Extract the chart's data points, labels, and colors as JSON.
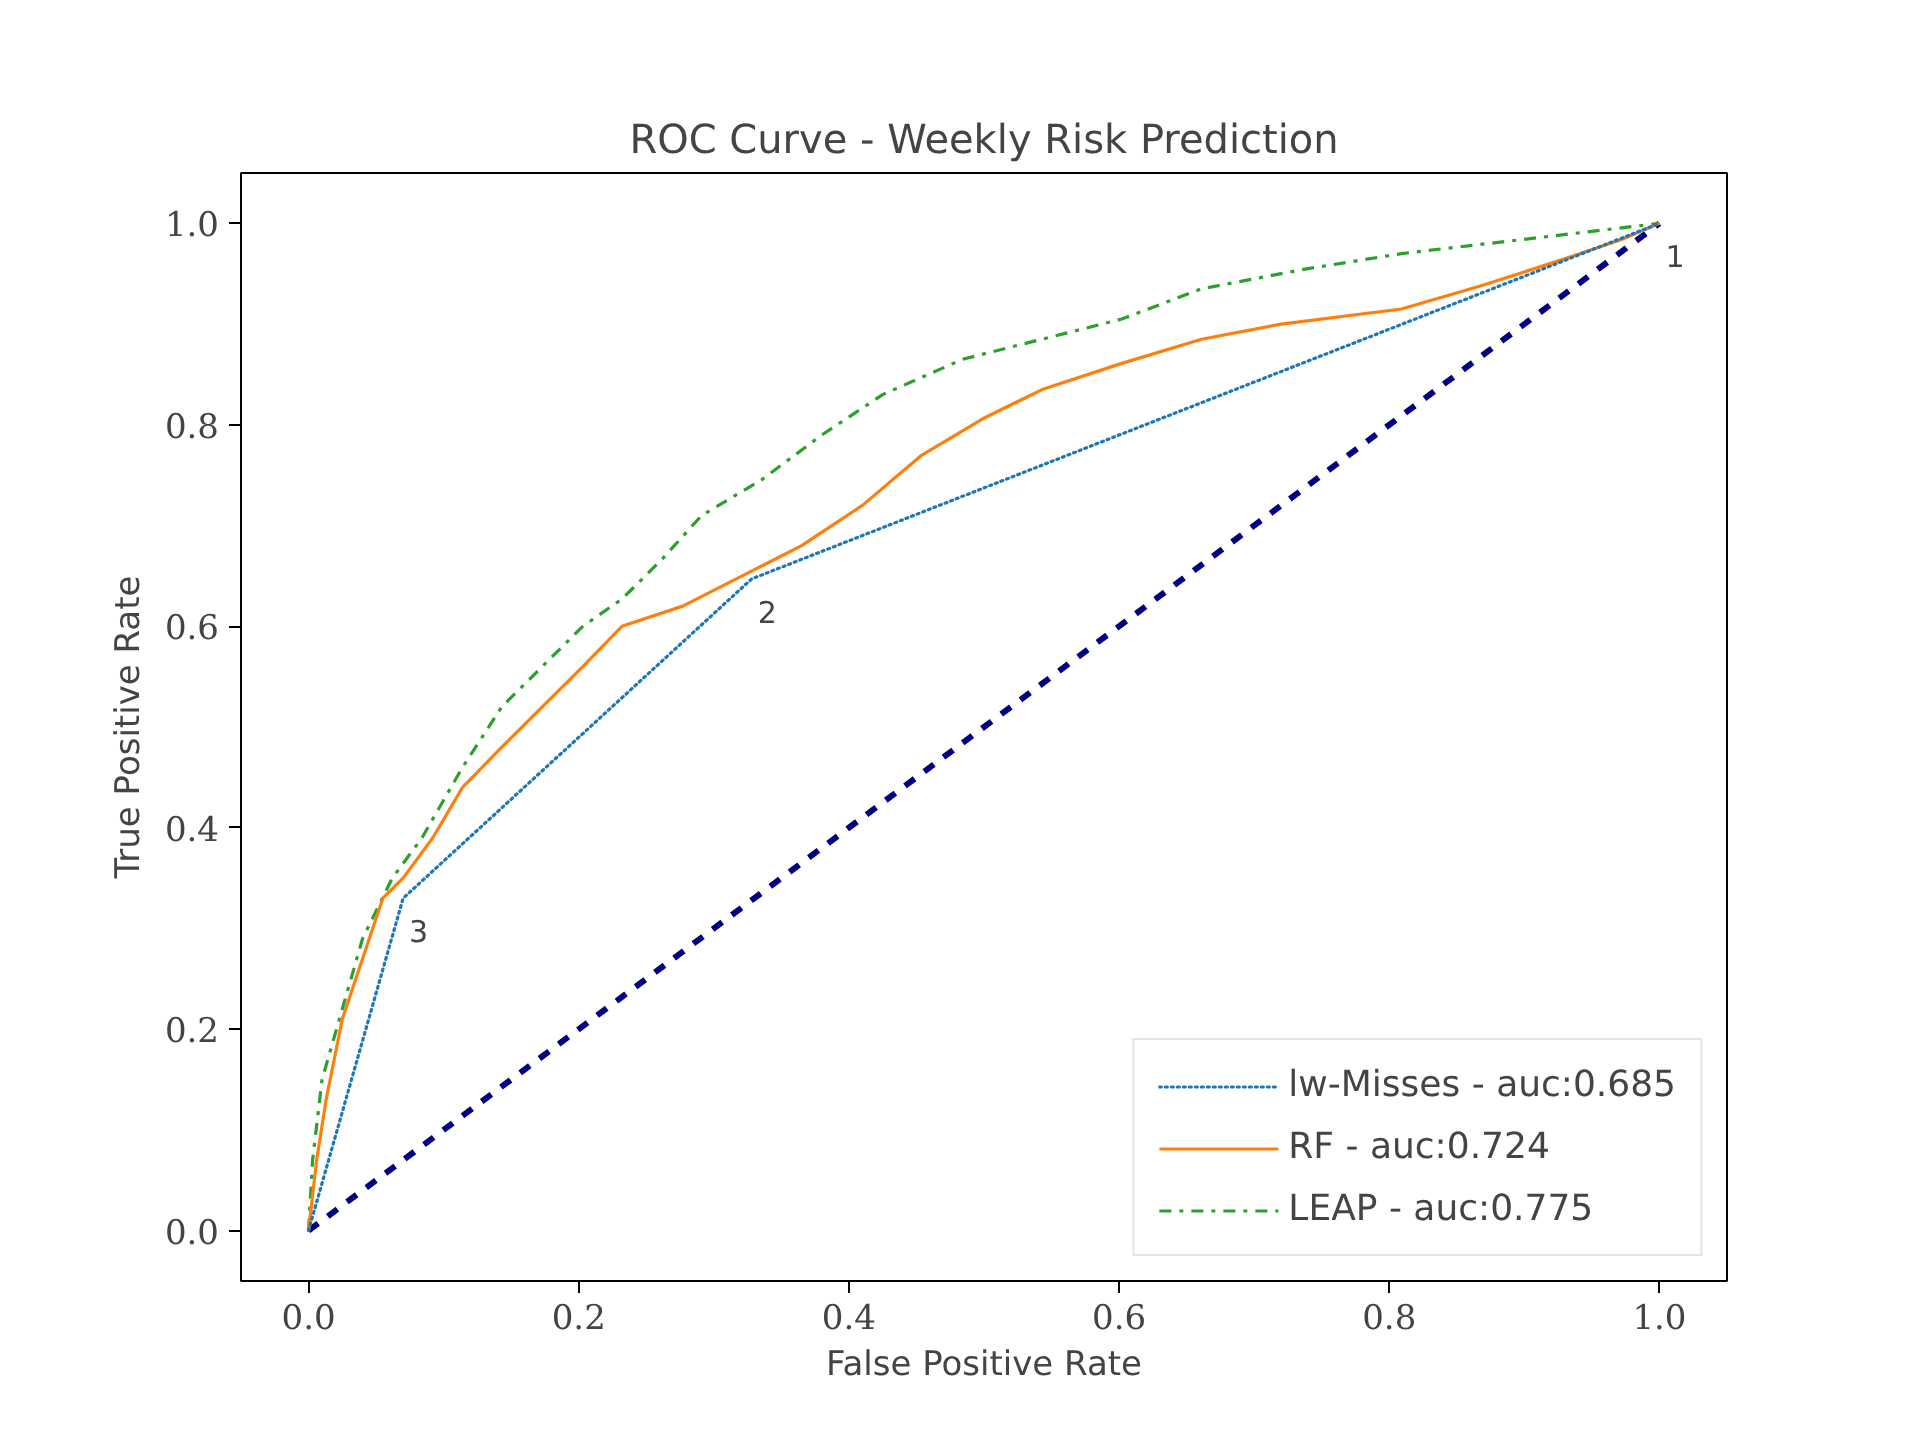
{
  "chart_data": {
    "type": "line",
    "title": "ROC Curve - Weekly Risk Prediction",
    "xlabel": "False Positive Rate",
    "ylabel": "True Positive Rate",
    "xlim": [
      -0.05,
      1.05
    ],
    "ylim": [
      -0.05,
      1.05
    ],
    "xticks": [
      {
        "value": 0,
        "label": "0.0"
      },
      {
        "value": 0.2,
        "label": "0.2"
      },
      {
        "value": 0.4,
        "label": "0.4"
      },
      {
        "value": 0.6,
        "label": "0.6"
      },
      {
        "value": 0.8,
        "label": "0.8"
      },
      {
        "value": 1,
        "label": "1.0"
      }
    ],
    "yticks": [
      {
        "value": 0,
        "label": "0.0"
      },
      {
        "value": 0.2,
        "label": "0.2"
      },
      {
        "value": 0.4,
        "label": "0.4"
      },
      {
        "value": 0.6,
        "label": "0.6"
      },
      {
        "value": 0.8,
        "label": "0.8"
      },
      {
        "value": 1,
        "label": "1.0"
      }
    ],
    "grid": false,
    "legend": "bottom right",
    "series": [
      {
        "name": "lw-Misses - auc:0.685",
        "color": "#1f77b4",
        "line_style": "dotted",
        "x": [
          0,
          0.07,
          0.328,
          1
        ],
        "values": [
          0,
          0.33,
          0.647,
          1
        ]
      },
      {
        "name": "RF - auc:0.724",
        "color": "#ff7f0e",
        "line_style": "solid",
        "x": [
          0,
          0.006,
          0.013,
          0.025,
          0.04,
          0.055,
          0.07,
          0.092,
          0.114,
          0.143,
          0.173,
          0.203,
          0.232,
          0.277,
          0.321,
          0.365,
          0.41,
          0.454,
          0.499,
          0.543,
          0.602,
          0.661,
          0.72,
          0.809,
          0.868,
          0.928,
          0.972,
          1
        ],
        "values": [
          0,
          0.07,
          0.13,
          0.21,
          0.27,
          0.33,
          0.35,
          0.39,
          0.44,
          0.48,
          0.52,
          0.56,
          0.6,
          0.62,
          0.65,
          0.68,
          0.72,
          0.77,
          0.806,
          0.835,
          0.861,
          0.885,
          0.9,
          0.915,
          0.938,
          0.964,
          0.984,
          1
        ]
      },
      {
        "name": "LEAP - auc:0.775",
        "color": "#2ca02c",
        "line_style": "dashdot",
        "x": [
          0,
          0.003,
          0.01,
          0.025,
          0.04,
          0.062,
          0.084,
          0.114,
          0.143,
          0.173,
          0.203,
          0.232,
          0.262,
          0.291,
          0.336,
          0.38,
          0.425,
          0.484,
          0.543,
          0.602,
          0.661,
          0.735,
          0.809,
          0.899,
          1
        ],
        "values": [
          0,
          0.07,
          0.15,
          0.22,
          0.29,
          0.35,
          0.39,
          0.46,
          0.52,
          0.56,
          0.6,
          0.627,
          0.667,
          0.71,
          0.746,
          0.79,
          0.83,
          0.865,
          0.885,
          0.905,
          0.935,
          0.954,
          0.97,
          0.984,
          1
        ]
      },
      {
        "color": "#000080",
        "line_style": "dashed",
        "x": [
          0,
          1
        ],
        "values": [
          0,
          1
        ]
      }
    ],
    "annotations": [
      {
        "text": "1",
        "x": 1,
        "y": 1
      },
      {
        "text": "2",
        "x": 0.328,
        "y": 0.647
      },
      {
        "text": "3",
        "x": 0.07,
        "y": 0.33
      }
    ]
  }
}
